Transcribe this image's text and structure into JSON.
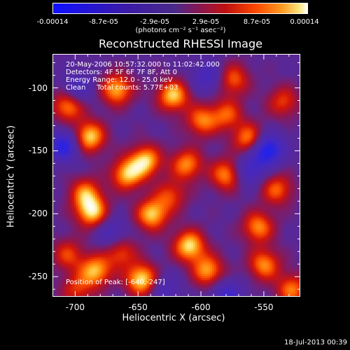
{
  "colorbar": {
    "ticks": [
      "-0.00014",
      "-8.7e-05",
      "-2.9e-05",
      "2.9e-05",
      "8.7e-05",
      "0.00014"
    ],
    "unit": "(photons cm⁻² s⁻¹ asec⁻²)",
    "colors": [
      "#1010ff",
      "#4b2a8a",
      "#c01010",
      "#ff9a20",
      "#ffffff"
    ]
  },
  "chart_data": {
    "type": "heatmap",
    "title": "Reconstructed RHESSI Image",
    "xlabel": "Heliocentric X (arcsec)",
    "ylabel": "Heliocentric Y (arcsec)",
    "xlim": [
      -718,
      -521
    ],
    "ylim": [
      -266,
      -73
    ],
    "x_ticks": [
      -700,
      -650,
      -600,
      -550
    ],
    "y_ticks": [
      -100,
      -150,
      -200,
      -250
    ],
    "annotations": [
      "20-May-2006 10:57:32.000 to 11:02:42.000",
      "Detectors: 4F 5F 6F 7F 8F, Att 0",
      "Energy Range: 12.0 - 25.0 keV",
      "Clean     Total counts: 5.77E+03"
    ],
    "peak_label": "Position of Peak: [-640,-247]",
    "peak": [
      -640,
      -247
    ],
    "hotspots": [
      {
        "x": -648,
        "y": -252,
        "v": 1.0
      },
      {
        "x": -685,
        "y": -245,
        "v": 0.85
      },
      {
        "x": -707,
        "y": -232,
        "v": 0.55
      },
      {
        "x": -665,
        "y": -230,
        "v": 0.6
      },
      {
        "x": -640,
        "y": -200,
        "v": 0.9
      },
      {
        "x": -610,
        "y": -225,
        "v": 0.95
      },
      {
        "x": -688,
        "y": -198,
        "v": 0.9
      },
      {
        "x": -693,
        "y": -183,
        "v": 0.7
      },
      {
        "x": -660,
        "y": -168,
        "v": 0.85
      },
      {
        "x": -645,
        "y": -157,
        "v": 0.9
      },
      {
        "x": -690,
        "y": -138,
        "v": 0.95
      },
      {
        "x": -707,
        "y": -113,
        "v": 0.8
      },
      {
        "x": -668,
        "y": -100,
        "v": 0.85
      },
      {
        "x": -623,
        "y": -105,
        "v": 0.9
      },
      {
        "x": -600,
        "y": -125,
        "v": 0.7
      },
      {
        "x": -612,
        "y": -160,
        "v": 0.75
      },
      {
        "x": -580,
        "y": -168,
        "v": 0.8
      },
      {
        "x": -562,
        "y": -140,
        "v": 0.8
      },
      {
        "x": -580,
        "y": -120,
        "v": 0.6
      },
      {
        "x": -535,
        "y": -110,
        "v": 0.55
      },
      {
        "x": -555,
        "y": -210,
        "v": 0.75
      },
      {
        "x": -595,
        "y": -245,
        "v": 0.8
      },
      {
        "x": -550,
        "y": -240,
        "v": 0.75
      },
      {
        "x": -528,
        "y": -260,
        "v": 0.7
      },
      {
        "x": -540,
        "y": -180,
        "v": 0.65
      },
      {
        "x": -700,
        "y": -260,
        "v": 0.5
      },
      {
        "x": -625,
        "y": -185,
        "v": 0.55
      },
      {
        "x": -575,
        "y": -92,
        "v": 0.65
      }
    ],
    "coldspots": [
      {
        "x": -710,
        "y": -145,
        "v": -0.8
      },
      {
        "x": -548,
        "y": -148,
        "v": -1.0
      },
      {
        "x": -563,
        "y": -165,
        "v": -0.6
      },
      {
        "x": -580,
        "y": -265,
        "v": -0.6
      },
      {
        "x": -700,
        "y": -100,
        "v": -0.5
      },
      {
        "x": -595,
        "y": -90,
        "v": -0.5
      },
      {
        "x": -630,
        "y": -260,
        "v": -0.4
      },
      {
        "x": -672,
        "y": -215,
        "v": -0.45
      }
    ]
  },
  "timestamp": "18-Jul-2013 00:39"
}
